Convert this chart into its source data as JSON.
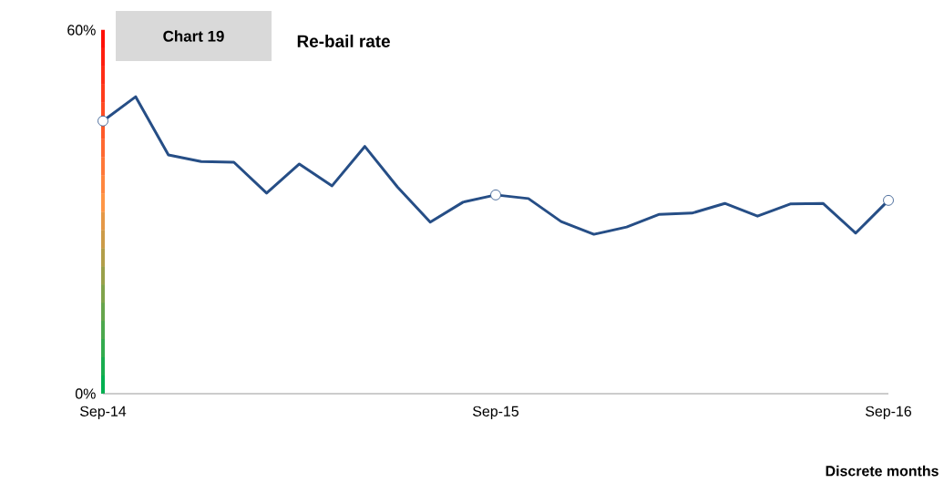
{
  "chart_data": {
    "type": "line",
    "title": "Re-bail rate",
    "xlabel": "Discrete months",
    "annotations": [
      "Chart 19"
    ],
    "x": [
      "2014-09",
      "2014-10",
      "2014-11",
      "2014-12",
      "2015-01",
      "2015-02",
      "2015-03",
      "2015-04",
      "2015-05",
      "2015-06",
      "2015-07",
      "2015-08",
      "2015-09",
      "2015-10",
      "2015-11",
      "2015-12",
      "2016-01",
      "2016-02",
      "2016-03",
      "2016-04",
      "2016-05",
      "2016-06",
      "2016-07",
      "2016-08",
      "2016-09"
    ],
    "series": [
      {
        "color": "#264e86",
        "values": [
          45.0,
          49.0,
          39.4,
          38.3,
          38.2,
          33.1,
          37.9,
          34.3,
          40.8,
          34.1,
          28.3,
          31.6,
          32.8,
          32.2,
          28.4,
          26.3,
          27.5,
          29.6,
          29.8,
          31.4,
          29.3,
          31.3,
          31.4,
          26.5,
          31.9
        ],
        "marker": "none"
      },
      {
        "type": "scatter",
        "color": "#264e86",
        "x": [
          "2014-09",
          "2015-09",
          "2016-09"
        ],
        "values": [
          45.0,
          32.8,
          31.9
        ],
        "marker": "circle"
      }
    ],
    "xlim": [
      "2014-09",
      "2016-09"
    ],
    "xticks": [
      {
        "value": "2014-09",
        "label": "Sep-14"
      },
      {
        "value": "2015-09",
        "label": "Sep-15"
      },
      {
        "value": "2016-09",
        "label": "Sep-16"
      }
    ],
    "ylim": [
      0,
      60
    ],
    "yticks": [
      {
        "value": 0,
        "label": "0%"
      },
      {
        "value": 60,
        "label": "60%"
      }
    ],
    "grid": false,
    "legend": false
  }
}
